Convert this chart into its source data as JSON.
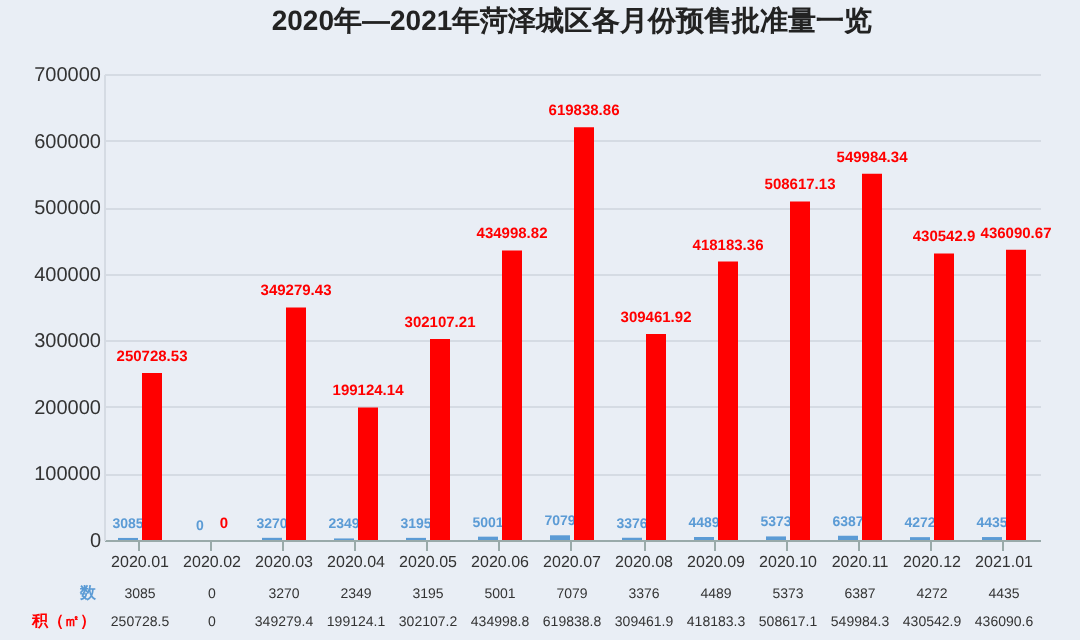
{
  "chart_data": {
    "type": "bar",
    "title": "2020年—2021年菏泽城区各月份预售批准量一览",
    "categories": [
      "2020.01",
      "2020.02",
      "2020.03",
      "2020.04",
      "2020.05",
      "2020.06",
      "2020.07",
      "2020.08",
      "2020.09",
      "2020.10",
      "2020.11",
      "2020.12",
      "2021.01"
    ],
    "series": [
      {
        "name": "数",
        "color": "#5b9bd5",
        "values": [
          3085,
          0,
          3270,
          2349,
          3195,
          5001,
          7079,
          3376,
          4489,
          5373,
          6387,
          4272,
          4435
        ]
      },
      {
        "name": "积（㎡）",
        "color": "#ff0000",
        "values": [
          250728.53,
          0,
          349279.43,
          199124.14,
          302107.21,
          434998.82,
          619838.86,
          309461.92,
          418183.36,
          508617.13,
          549984.34,
          430542.9,
          436090.67
        ]
      }
    ],
    "ylim": [
      0,
      700000
    ],
    "yticks": [
      0,
      100000,
      200000,
      300000,
      400000,
      500000,
      600000,
      700000
    ],
    "grid": "y",
    "legend": false,
    "data_labels": true,
    "annotations": [
      "3085",
      "0",
      "3270",
      "2349",
      "3195",
      "5001",
      "7079",
      "3376",
      "4489",
      "5373",
      "6387",
      "4272",
      "4435",
      "250728.5",
      "0",
      "349279.4",
      "199124.1",
      "302107.2",
      "434998.8",
      "619838.8",
      "309461.9",
      "418183.3",
      "508617.1",
      "549984.3",
      "430542.9",
      "436090.6"
    ]
  }
}
